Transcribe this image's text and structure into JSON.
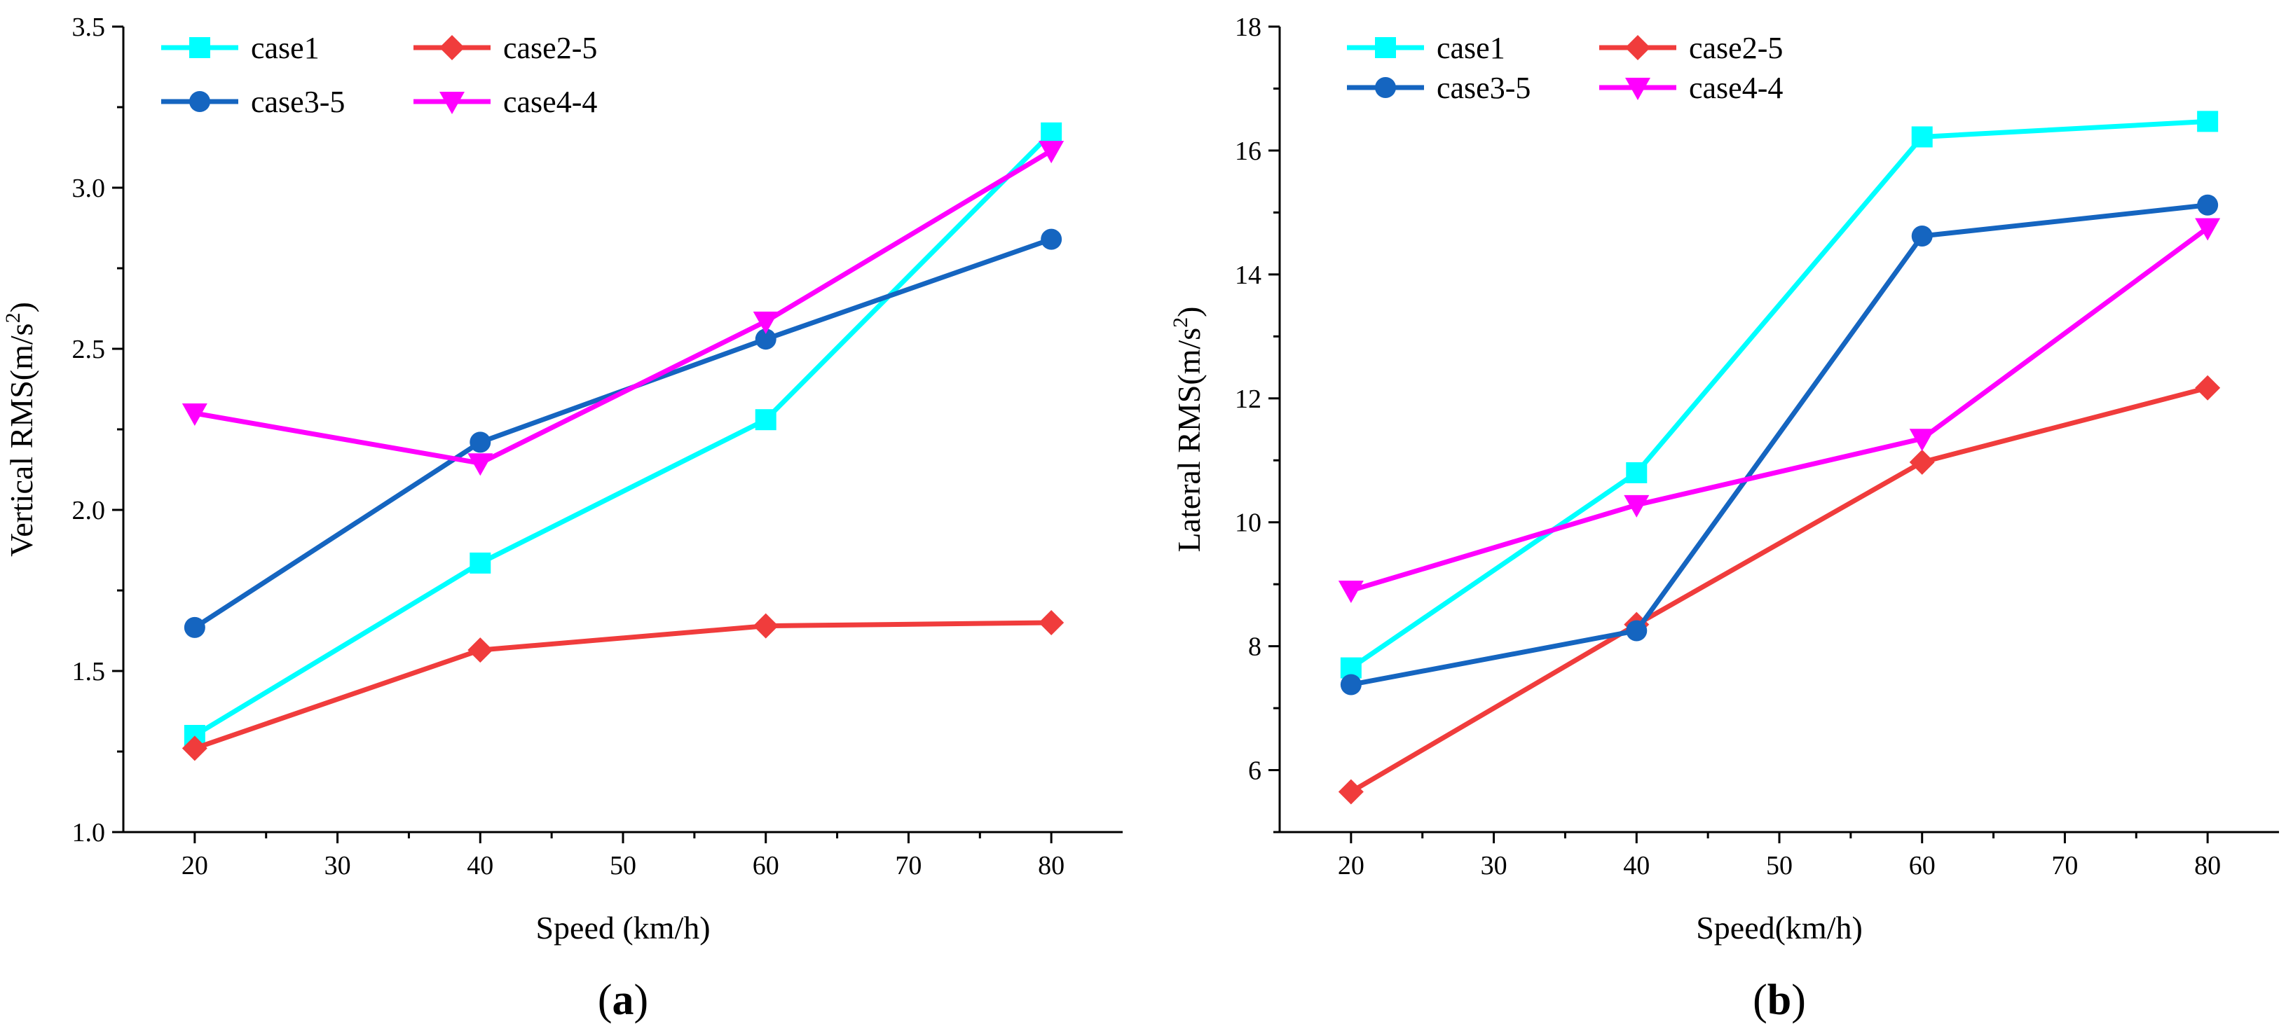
{
  "chart_data": [
    {
      "panel": "(a)",
      "panel_letter": "a",
      "type": "line",
      "xlabel": "Speed (km/h)",
      "ylabel": "Vertical RMS(m/s²)",
      "ylabel_main": "Vertical RMS(m/s",
      "ylabel_sup": "2",
      "ylabel_end": ")",
      "x": [
        20,
        40,
        60,
        80
      ],
      "xlim": [
        15,
        85
      ],
      "ylim": [
        1.0,
        3.5
      ],
      "xticks": [
        20,
        30,
        40,
        50,
        60,
        70,
        80
      ],
      "yticks": [
        1.0,
        1.5,
        2.0,
        2.5,
        3.0,
        3.5
      ],
      "xtick_labels": [
        "20",
        "30",
        "40",
        "50",
        "60",
        "70",
        "80"
      ],
      "ytick_labels": [
        "1.0",
        "1.5",
        "2.0",
        "2.5",
        "3.0",
        "3.5"
      ],
      "legend_position": "top-left",
      "grid": false,
      "series": [
        {
          "name": "case1",
          "color": "#00FFFF",
          "marker": "square",
          "values": [
            1.3,
            1.835,
            2.28,
            3.17
          ]
        },
        {
          "name": "case2-5",
          "color": "#F03C3C",
          "marker": "diamond",
          "values": [
            1.26,
            1.565,
            1.64,
            1.65
          ]
        },
        {
          "name": "case3-5",
          "color": "#1565C0",
          "marker": "circle",
          "values": [
            1.635,
            2.21,
            2.53,
            2.84
          ]
        },
        {
          "name": "case4-4",
          "color": "#FF00FF",
          "marker": "triangle-down",
          "values": [
            2.3,
            2.145,
            2.585,
            3.115
          ]
        }
      ]
    },
    {
      "panel": "(b)",
      "panel_letter": "b",
      "type": "line",
      "xlabel": "Speed(km/h)",
      "ylabel": "Lateral RMS(m/s²)",
      "ylabel_main": "Lateral RMS(m/s",
      "ylabel_sup": "2",
      "ylabel_end": ")",
      "x": [
        20,
        40,
        60,
        80
      ],
      "xlim": [
        15,
        85
      ],
      "ylim": [
        5,
        18
      ],
      "xticks": [
        20,
        30,
        40,
        50,
        60,
        70,
        80
      ],
      "yticks": [
        6,
        8,
        10,
        12,
        14,
        16,
        18
      ],
      "xtick_labels": [
        "20",
        "30",
        "40",
        "50",
        "60",
        "70",
        "80"
      ],
      "ytick_labels": [
        "6",
        "8",
        "10",
        "12",
        "14",
        "16",
        "18"
      ],
      "legend_position": "top-left",
      "grid": false,
      "series": [
        {
          "name": "case1",
          "color": "#00FFFF",
          "marker": "square",
          "values": [
            7.65,
            10.8,
            16.22,
            16.47
          ]
        },
        {
          "name": "case2-5",
          "color": "#F03C3C",
          "marker": "diamond",
          "values": [
            5.65,
            8.35,
            10.97,
            12.17
          ]
        },
        {
          "name": "case3-5",
          "color": "#1565C0",
          "marker": "circle",
          "values": [
            7.38,
            8.25,
            14.62,
            15.12
          ]
        },
        {
          "name": "case4-4",
          "color": "#FF00FF",
          "marker": "triangle-down",
          "values": [
            8.9,
            10.28,
            11.35,
            14.75
          ]
        }
      ]
    }
  ]
}
